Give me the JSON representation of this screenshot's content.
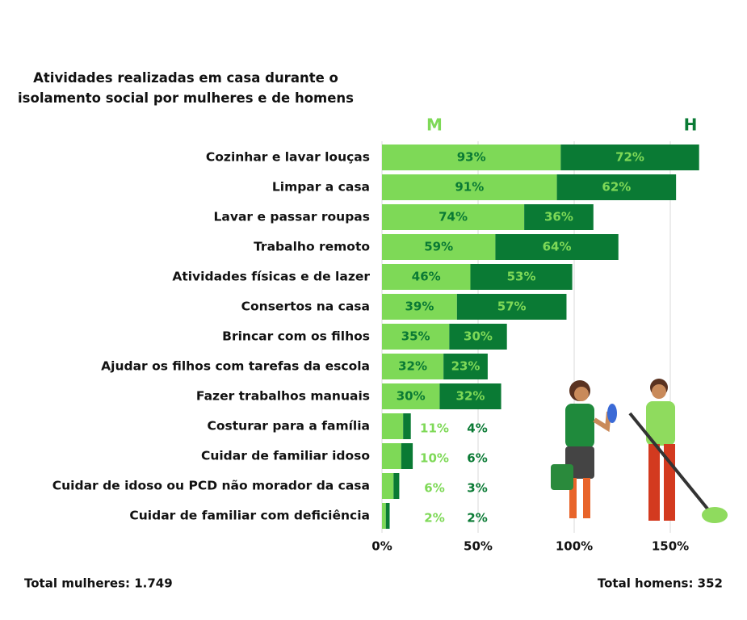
{
  "chart_data": {
    "type": "stacked-barh",
    "title": "Atividades realizadas em casa durante o isolamento social por mulheres e de homens",
    "categories": [
      "Cozinhar e lavar louças",
      "Limpar a casa",
      "Lavar e passar roupas",
      "Trabalho remoto",
      "Atividades físicas e de lazer",
      "Consertos na casa",
      "Brincar com os filhos",
      "Ajudar os filhos com tarefas da escola",
      "Fazer trabalhos manuais",
      "Costurar para a família",
      "Cuidar de familiar idoso",
      "Cuidar de idoso ou PCD não morador da casa",
      "Cuidar de familiar com deficiência"
    ],
    "series": [
      {
        "name": "M",
        "color": "#7ed957",
        "values": [
          93,
          91,
          74,
          59,
          46,
          39,
          35,
          32,
          30,
          11,
          10,
          6,
          2
        ],
        "value_labels": [
          "93%",
          "91%",
          "74%",
          "59%",
          "46%",
          "39%",
          "35%",
          "32%",
          "30%",
          "11%",
          "10%",
          "6%",
          "2%"
        ]
      },
      {
        "name": "H",
        "color": "#0a7a34",
        "values": [
          72,
          62,
          36,
          64,
          53,
          57,
          30,
          23,
          32,
          4,
          6,
          3,
          2
        ],
        "value_labels": [
          "72%",
          "62%",
          "36%",
          "64%",
          "53%",
          "57%",
          "30%",
          "23%",
          "32%",
          "4%",
          "6%",
          "3%",
          "2%"
        ]
      }
    ],
    "xlim": [
      0,
      170
    ],
    "xticks": [
      {
        "value": 0,
        "label": "0%"
      },
      {
        "value": 50,
        "label": "50%"
      },
      {
        "value": 100,
        "label": "100%"
      },
      {
        "value": 150,
        "label": "150%"
      }
    ],
    "grid": true,
    "notes": [
      "Total mulheres: 1.749",
      "Total homens: 352"
    ]
  }
}
